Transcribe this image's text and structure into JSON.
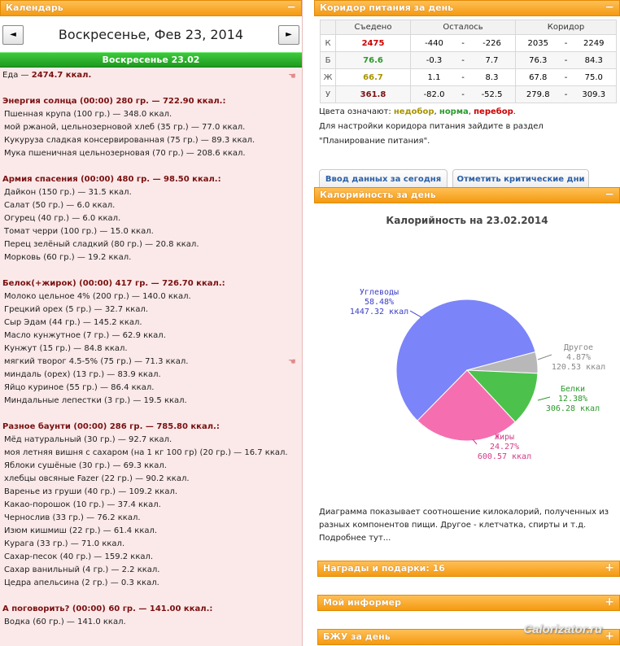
{
  "calendar": {
    "header": "Календарь",
    "toggle": "−",
    "prev": "◄",
    "next": "►",
    "date_title": "Воскресенье, Фев 23, 2014",
    "day_bar": "Воскресенье 23.02"
  },
  "food": {
    "total_label": "Еда",
    "total_value": "2474.7 ккал.",
    "meals": [
      {
        "title": "Энергия солнца (00:00) 280 гр. — 722.90 ккал.:",
        "items": [
          "Пшенная крупа (100 гр.) — 348.0 ккал.",
          "мой ржаной, цельнозерновой хлеб (35 гр.) — 77.0 ккал.",
          "Кукуруза сладкая консервированная (75 гр.) — 89.3 ккал.",
          "Мука пшеничная цельнозерновая (70 гр.) — 208.6 ккал."
        ]
      },
      {
        "title": "Армия спасения (00:00) 480 гр. — 98.50 ккал.:",
        "items": [
          "Дайкон (150 гр.) — 31.5 ккал.",
          "Салат (50 гр.) — 6.0 ккал.",
          "Огурец (40 гр.) — 6.0 ккал.",
          "Томат черри (100 гр.) — 15.0 ккал.",
          "Перец зелёный сладкий (80 гр.) — 20.8 ккал.",
          "Морковь (60 гр.) — 19.2 ккал."
        ]
      },
      {
        "title": "Белок(+жирок) (00:00) 417 гр. — 726.70 ккал.:",
        "items": [
          "Молоко цельное 4% (200 гр.) — 140.0 ккал.",
          "Грецкий орех (5 гр.) — 32.7 ккал.",
          "Сыр Эдам (44 гр.) — 145.2 ккал.",
          "Масло кунжутное (7 гр.) — 62.9 ккал.",
          "Кунжут (15 гр.) — 84.8 ккал.",
          "мягкий творог 4.5-5% (75 гр.) — 71.3 ккал.",
          "миндаль (орех) (13 гр.) — 83.9 ккал.",
          "Яйцо куриное (55 гр.) — 86.4 ккал.",
          "Миндальные лепестки (3 гр.) — 19.5 ккал."
        ]
      },
      {
        "title": "Разное баунти (00:00) 286 гр. — 785.80 ккал.:",
        "items": [
          "Мёд натуральный (30 гр.) — 92.7 ккал.",
          "моя летняя вишня с сахаром (на 1 кг 100 гр) (20 гр.) — 16.7 ккал.",
          "Яблоки сушёные (30 гр.) — 69.3 ккал.",
          "хлебцы овсяные Fazer (22 гр.) — 90.2 ккал.",
          "Варенье из груши (40 гр.) — 109.2 ккал.",
          "Какао-порошок (10 гр.) — 37.4 ккал.",
          "Чернослив (33 гр.) — 76.2 ккал.",
          "Изюм кишмиш (22 гр.) — 61.4 ккал.",
          "Курага (33 гр.) — 71.0 ккал.",
          "Сахар-песок (40 гр.) — 159.2 ккал.",
          "Сахар ванильный (4 гр.) — 2.2 ккал.",
          "Цедра апельсина (2 гр.) — 0.3 ккал."
        ]
      },
      {
        "title": "А поговорить? (00:00) 60 гр. — 141.00 ккал.:",
        "items": [
          "Водка (60 гр.) — 141.0 ккал."
        ]
      }
    ]
  },
  "corridor": {
    "header": "Коридор питания за день",
    "toggle": "−",
    "columns": [
      "Съедено",
      "Осталось",
      "Коридор"
    ],
    "rows": [
      {
        "key": "К",
        "eaten": "2475",
        "rem_min": "-440",
        "rem_max": "-226",
        "cor_min": "2035",
        "cor_max": "2249",
        "color": "#cc0000"
      },
      {
        "key": "Б",
        "eaten": "76.6",
        "rem_min": "-0.3",
        "rem_max": "7.7",
        "cor_min": "76.3",
        "cor_max": "84.3",
        "color": "#2a9a2a"
      },
      {
        "key": "Ж",
        "eaten": "66.7",
        "rem_min": "1.1",
        "rem_max": "8.3",
        "cor_min": "67.8",
        "cor_max": "75.0",
        "color": "#a89400"
      },
      {
        "key": "У",
        "eaten": "361.8",
        "rem_min": "-82.0",
        "rem_max": "-52.5",
        "cor_min": "279.8",
        "cor_max": "309.3",
        "color": "#7a1010"
      }
    ],
    "dash": "-",
    "legend_prefix": "Цвета означают:",
    "legend_under": "недобор",
    "legend_norm": "норма",
    "legend_over": "перебор",
    "hint_line1": "Для настройки коридора питания зайдите в раздел",
    "hint_line2": "\"Планирование питания\".",
    "btn_input": "Ввод данных за сегодня",
    "btn_critical": "Отметить критические дни"
  },
  "calories": {
    "header": "Калорийность за день",
    "toggle": "−",
    "description": "Диаграмма показывает соотношение килокалорий, полученных из разных компонентов пищи. Другое - клетчатка, спирты и т.д.",
    "more": "Подробнее тут..."
  },
  "chart_data": {
    "type": "pie",
    "title": "Калорийность на 23.02.2014",
    "slices": [
      {
        "name": "Углеводы",
        "percent": 58.48,
        "kcal_label": "1447.32 ккал",
        "pct_label": "58.48%",
        "color": "#7b84f8"
      },
      {
        "name": "Другое",
        "percent": 4.87,
        "kcal_label": "120.53 ккал",
        "pct_label": "4.87%",
        "color": "#b8b8b8"
      },
      {
        "name": "Белки",
        "percent": 12.38,
        "kcal_label": "306.28 ккал",
        "pct_label": "12.38%",
        "color": "#4cc24c"
      },
      {
        "name": "Жиры",
        "percent": 24.27,
        "kcal_label": "600.57 ккал",
        "pct_label": "24.27%",
        "color": "#f56fb0"
      }
    ],
    "label_colors": {
      "Углеводы": "#3a3ec8",
      "Другое": "#888888",
      "Белки": "#2a9a2a",
      "Жиры": "#d43a8a"
    }
  },
  "awards": {
    "header": "Награды и подарки: 16",
    "toggle": "+"
  },
  "informer": {
    "header": "Мой информер",
    "toggle": "+"
  },
  "bju": {
    "header": "БЖУ за день",
    "toggle": "+"
  },
  "watermark": "Calorizator.ru"
}
